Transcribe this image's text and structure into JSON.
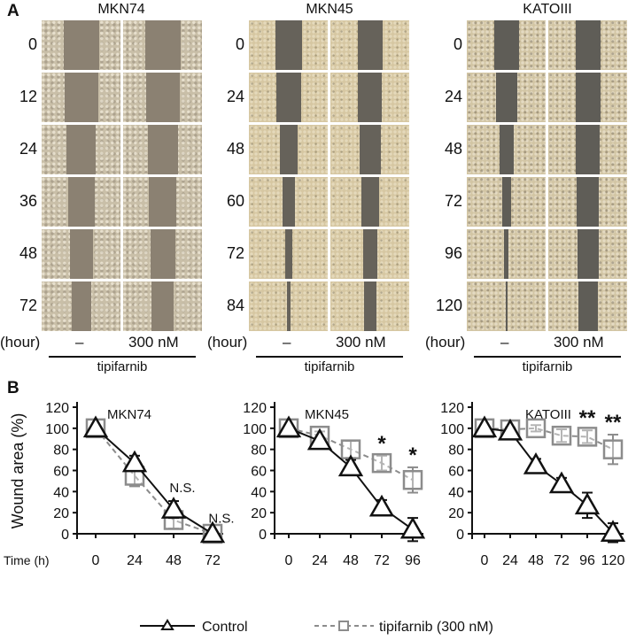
{
  "panel_a": {
    "letter": "A",
    "hour_label": "(hour)",
    "treatment_minus": "–",
    "treatment_dose": "300 nM",
    "drug": "tipifarnib",
    "cell_lines": [
      {
        "name": "MKN74",
        "hours": [
          "0",
          "12",
          "24",
          "36",
          "48",
          "72"
        ],
        "gap_control": [
          40,
          38,
          33,
          30,
          26,
          22
        ],
        "gap_drug": [
          40,
          38,
          34,
          31,
          28,
          25
        ],
        "style": "mkn74"
      },
      {
        "name": "MKN45",
        "hours": [
          "0",
          "24",
          "48",
          "60",
          "72",
          "84"
        ],
        "gap_control": [
          30,
          28,
          20,
          14,
          8,
          4
        ],
        "gap_drug": [
          28,
          27,
          24,
          20,
          16,
          14
        ],
        "style": "mkn45"
      },
      {
        "name": "KATOIII",
        "hours": [
          "0",
          "24",
          "48",
          "72",
          "96",
          "120"
        ],
        "gap_control": [
          28,
          24,
          16,
          10,
          5,
          2
        ],
        "gap_drug": [
          28,
          28,
          27,
          25,
          24,
          22
        ],
        "style": "kato"
      }
    ]
  },
  "panel_b": {
    "letter": "B",
    "ylabel": "Wound area (%)",
    "xlabel": "Time (h)",
    "legend": {
      "control": "Control",
      "drug": "tipifarnib (300 nM)"
    }
  },
  "chart_data": [
    {
      "type": "line",
      "title": "MKN74",
      "xlabel": "Time (h)",
      "ylabel": "Wound area (%)",
      "ylim": [
        0,
        120
      ],
      "yticks": [
        0,
        20,
        40,
        60,
        80,
        100,
        120
      ],
      "x": [
        0,
        24,
        48,
        72
      ],
      "series": [
        {
          "name": "Control",
          "values": [
            100,
            67,
            23,
            0
          ],
          "errors": [
            2,
            7,
            8,
            2
          ],
          "style": "solid",
          "marker": "triangle",
          "color": "#111111"
        },
        {
          "name": "tipifarnib (300 nM)",
          "values": [
            100,
            55,
            13,
            0
          ],
          "errors": [
            2,
            10,
            8,
            2
          ],
          "style": "dashed",
          "marker": "square",
          "color": "#8c8c8c"
        }
      ],
      "annotations": [
        {
          "x": 48,
          "text": "N.S."
        },
        {
          "x": 72,
          "text": "N.S."
        }
      ]
    },
    {
      "type": "line",
      "title": "MKN45",
      "xlabel": "Time (h)",
      "ylabel": "Wound area (%)",
      "ylim": [
        0,
        120
      ],
      "yticks": [
        0,
        20,
        40,
        60,
        80,
        100,
        120
      ],
      "x": [
        0,
        24,
        48,
        72,
        96
      ],
      "series": [
        {
          "name": "Control",
          "values": [
            100,
            88,
            63,
            25,
            4
          ],
          "errors": [
            2,
            3,
            7,
            7,
            11
          ],
          "style": "solid",
          "marker": "triangle",
          "color": "#111111"
        },
        {
          "name": "tipifarnib (300 nM)",
          "values": [
            100,
            93,
            80,
            67,
            51
          ],
          "errors": [
            2,
            4,
            8,
            7,
            12
          ],
          "style": "dashed",
          "marker": "square",
          "color": "#8c8c8c"
        }
      ],
      "annotations": [
        {
          "x": 72,
          "text": "*"
        },
        {
          "x": 96,
          "text": "*"
        }
      ]
    },
    {
      "type": "line",
      "title": "KATOIII",
      "xlabel": "Time (h)",
      "ylabel": "Wound area (%)",
      "ylim": [
        0,
        120
      ],
      "yticks": [
        0,
        20,
        40,
        60,
        80,
        100,
        120
      ],
      "x": [
        0,
        24,
        48,
        72,
        96,
        120
      ],
      "series": [
        {
          "name": "Control",
          "values": [
            100,
            97,
            65,
            47,
            27,
            1
          ],
          "errors": [
            2,
            2,
            6,
            6,
            12,
            9
          ],
          "style": "solid",
          "marker": "triangle",
          "color": "#111111"
        },
        {
          "name": "tipifarnib (300 nM)",
          "values": [
            100,
            99,
            100,
            93,
            92,
            80
          ],
          "errors": [
            2,
            2,
            3,
            6,
            6,
            14
          ],
          "style": "dashed",
          "marker": "square",
          "color": "#8c8c8c"
        }
      ],
      "annotations": [
        {
          "x": 96,
          "text": "**"
        },
        {
          "x": 120,
          "text": "**"
        }
      ]
    }
  ]
}
